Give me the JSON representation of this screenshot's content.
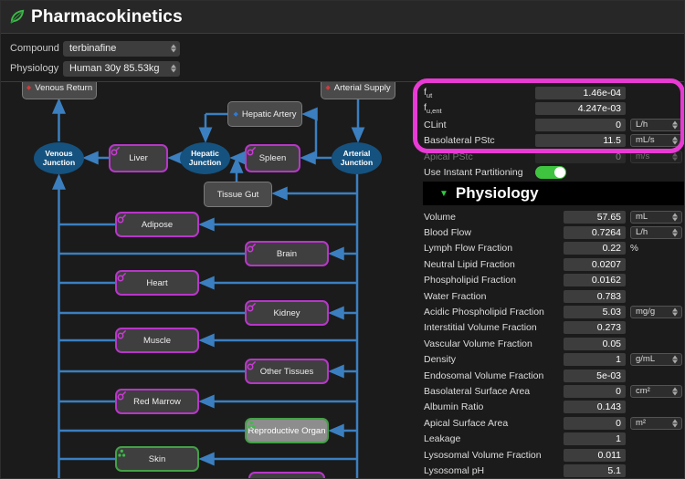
{
  "header": {
    "title": "Pharmacokinetics"
  },
  "filters": {
    "compound_label": "Compound",
    "compound_value": "terbinafine",
    "physiology_label": "Physiology",
    "physiology_value": "Human 30y 85.53kg"
  },
  "diagram": {
    "nodes": [
      {
        "id": "venous-return",
        "label": "Venous Return",
        "style": "box",
        "icon": "red-diamond-icon"
      },
      {
        "id": "arterial-supply",
        "label": "Arterial Supply",
        "style": "box",
        "icon": "red-diamond-icon"
      },
      {
        "id": "hepatic-artery",
        "label": "Hepatic Artery",
        "style": "box",
        "icon": "blue-diamond-icon"
      },
      {
        "id": "venous-junction",
        "label": "Venous Junction",
        "style": "ellipse",
        "icon": ""
      },
      {
        "id": "hepatic-junction",
        "label": "Hepatic Junction",
        "style": "ellipse",
        "icon": ""
      },
      {
        "id": "arterial-junction",
        "label": "Arterial Junction",
        "style": "ellipse",
        "icon": ""
      },
      {
        "id": "liver",
        "label": "Liver",
        "style": "organ-m",
        "icon": "flask-icon"
      },
      {
        "id": "spleen",
        "label": "Spleen",
        "style": "organ-m",
        "icon": "flask-icon"
      },
      {
        "id": "tissue-gut",
        "label": "Tissue Gut",
        "style": "box",
        "icon": ""
      },
      {
        "id": "adipose",
        "label": "Adipose",
        "style": "organ-m",
        "icon": "flask-icon"
      },
      {
        "id": "brain",
        "label": "Brain",
        "style": "organ-m",
        "icon": "flask-icon"
      },
      {
        "id": "heart",
        "label": "Heart",
        "style": "organ-m",
        "icon": "flask-icon"
      },
      {
        "id": "kidney",
        "label": "Kidney",
        "style": "organ-m",
        "icon": "flask-icon"
      },
      {
        "id": "muscle",
        "label": "Muscle",
        "style": "organ-m",
        "icon": "flask-icon"
      },
      {
        "id": "other-tissues",
        "label": "Other Tissues",
        "style": "organ-m",
        "icon": "flask-icon"
      },
      {
        "id": "red-marrow",
        "label": "Red Marrow",
        "style": "organ-m",
        "icon": "flask-icon"
      },
      {
        "id": "reproductive-organ",
        "label": "Reproductive Organ",
        "style": "organ-gsel",
        "icon": "dots-icon"
      },
      {
        "id": "skin",
        "label": "Skin",
        "style": "organ-g",
        "icon": "dots-icon"
      },
      {
        "id": "partial-organ",
        "label": "",
        "style": "organ-m",
        "icon": ""
      }
    ]
  },
  "params": {
    "compound_rows": [
      {
        "id": "fut",
        "base": "f",
        "sub": "ut",
        "label": "",
        "value": "1.46e-04",
        "unit": "",
        "unit_select": false,
        "dim": false
      },
      {
        "id": "fu-ent",
        "base": "f",
        "sub": "u,ent",
        "label": "",
        "value": "4.247e-03",
        "unit": "",
        "unit_select": false,
        "dim": false
      },
      {
        "id": "clint",
        "base": "",
        "sub": "",
        "label": "CLint",
        "value": "0",
        "unit": "L/h",
        "unit_select": true,
        "dim": false
      },
      {
        "id": "basolateral-pstc",
        "base": "",
        "sub": "",
        "label": "Basolateral PStc",
        "value": "11.5",
        "unit": "mL/s",
        "unit_select": true,
        "dim": false
      },
      {
        "id": "apical-pstc",
        "base": "",
        "sub": "",
        "label": "Apical PStc",
        "value": "0",
        "unit": "m/s",
        "unit_select": true,
        "dim": true
      }
    ],
    "instant_partitioning": {
      "label": "Use Instant Partitioning",
      "state": "on"
    },
    "section_title": "Physiology",
    "physiology_rows": [
      {
        "id": "volume",
        "label": "Volume",
        "value": "57.65",
        "unit": "mL",
        "unit_select": true
      },
      {
        "id": "blood-flow",
        "label": "Blood Flow",
        "value": "0.7264",
        "unit": "L/h",
        "unit_select": true
      },
      {
        "id": "lymph-flow-fraction",
        "label": "Lymph Flow Fraction",
        "value": "0.22",
        "unit": "%",
        "unit_select": false
      },
      {
        "id": "neutral-lipid-fraction",
        "label": "Neutral Lipid Fraction",
        "value": "0.0207",
        "unit": "",
        "unit_select": false
      },
      {
        "id": "phospholipid-fraction",
        "label": "Phospholipid Fraction",
        "value": "0.0162",
        "unit": "",
        "unit_select": false
      },
      {
        "id": "water-fraction",
        "label": "Water Fraction",
        "value": "0.783",
        "unit": "",
        "unit_select": false
      },
      {
        "id": "acidic-phospholipid-fraction",
        "label": "Acidic Phospholipid Fraction",
        "value": "5.03",
        "unit": "mg/g",
        "unit_select": true
      },
      {
        "id": "interstitial-volume-fraction",
        "label": "Interstitial Volume Fraction",
        "value": "0.273",
        "unit": "",
        "unit_select": false
      },
      {
        "id": "vascular-volume-fraction",
        "label": "Vascular Volume Fraction",
        "value": "0.05",
        "unit": "",
        "unit_select": false
      },
      {
        "id": "density",
        "label": "Density",
        "value": "1",
        "unit": "g/mL",
        "unit_select": true
      },
      {
        "id": "endosomal-volume-fraction",
        "label": "Endosomal Volume Fraction",
        "value": "5e-03",
        "unit": "",
        "unit_select": false
      },
      {
        "id": "basolateral-surface-area",
        "label": "Basolateral Surface Area",
        "value": "0",
        "unit": "cm²",
        "unit_select": true
      },
      {
        "id": "albumin-ratio",
        "label": "Albumin Ratio",
        "value": "0.143",
        "unit": "",
        "unit_select": false
      },
      {
        "id": "apical-surface-area",
        "label": "Apical Surface Area",
        "value": "0",
        "unit": "m²",
        "unit_select": true
      },
      {
        "id": "leakage",
        "label": "Leakage",
        "value": "1",
        "unit": "",
        "unit_select": false
      },
      {
        "id": "lysosomal-volume-fraction",
        "label": "Lysosomal Volume Fraction",
        "value": "0.011",
        "unit": "",
        "unit_select": false
      },
      {
        "id": "lysosomal-ph",
        "label": "Lysosomal pH",
        "value": "5.1",
        "unit": "",
        "unit_select": false
      }
    ]
  },
  "colors": {
    "annotation": "#e83ad4",
    "organ_magenta": "#b836c9",
    "organ_green": "#43a047",
    "flow_blue": "#3b7fc0",
    "junction_blue": "#15527f",
    "toggle_green": "#3ec43e",
    "supply_red": "#d03a3a",
    "artery_blue": "#2e7bd6"
  }
}
